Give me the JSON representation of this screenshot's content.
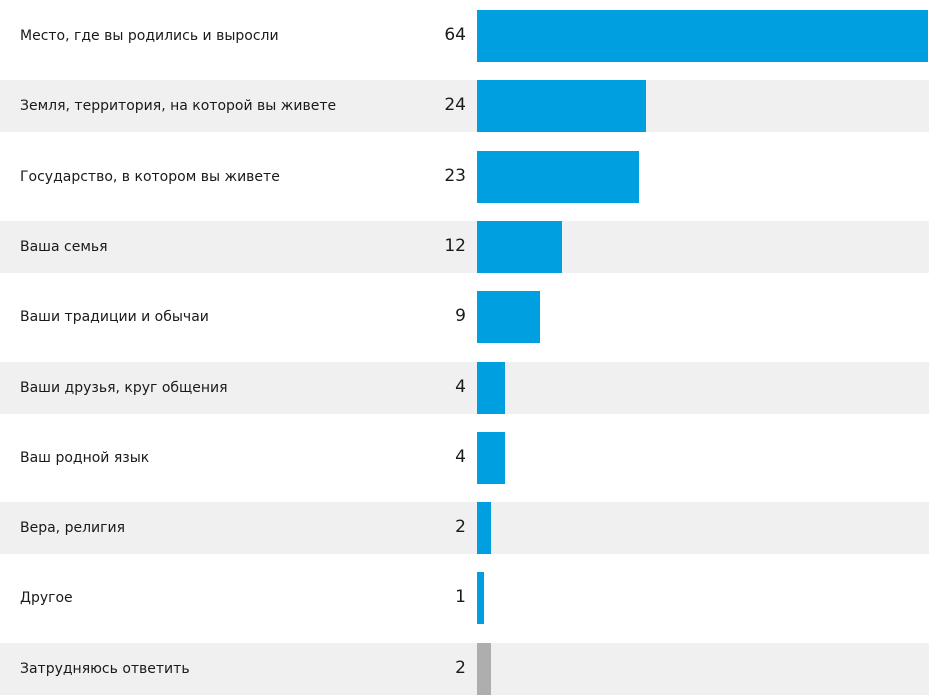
{
  "chart_data": {
    "type": "bar",
    "orientation": "horizontal",
    "categories": [
      "Место, где вы родились и выросли",
      "Земля, территория, на которой вы живете",
      "Государство, в котором вы живете",
      "Ваша семья",
      "Ваши традиции и обычаи",
      "Ваши друзья, круг общения",
      "Ваш родной язык",
      "Вера, религия",
      "Другое",
      "Затрудняюсь ответить"
    ],
    "values": [
      64,
      24,
      23,
      12,
      9,
      4,
      4,
      2,
      1,
      2
    ],
    "value_labels": [
      "64",
      "24",
      "23",
      "12",
      "9",
      "4",
      "4",
      "2",
      "1",
      "2"
    ],
    "bar_colors": [
      "#009fdf",
      "#009fdf",
      "#009fdf",
      "#009fdf",
      "#009fdf",
      "#009fdf",
      "#009fdf",
      "#009fdf",
      "#009fdf",
      "#aeaeae"
    ],
    "xlim": [
      0,
      64
    ],
    "grid": false,
    "row_banding": true,
    "colors": {
      "bar": "#009fdf",
      "bar_muted": "#aeaeae",
      "band": "#f0f0f0"
    }
  }
}
